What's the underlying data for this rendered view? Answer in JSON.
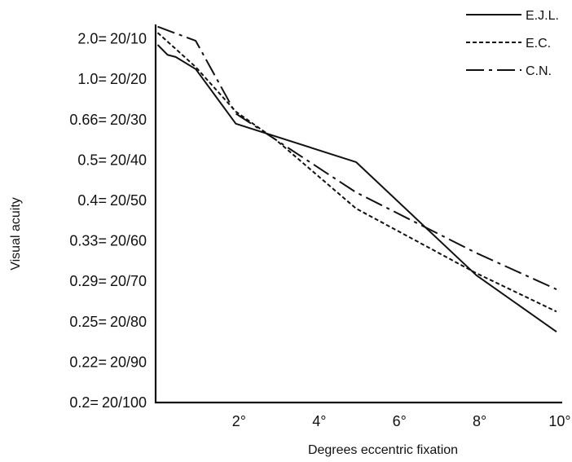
{
  "chart_data": {
    "type": "line",
    "title": "",
    "xlabel": "Degrees eccentric fixation",
    "ylabel": "Visual acuity",
    "xlim": [
      0,
      10
    ],
    "ylim_levels": [
      0,
      11
    ],
    "x_ticks": [
      {
        "value": 2,
        "label": "2°"
      },
      {
        "value": 4,
        "label": "4°"
      },
      {
        "value": 6,
        "label": "6°"
      },
      {
        "value": 8,
        "label": "8°"
      },
      {
        "value": 10,
        "label": "10°"
      }
    ],
    "y_ticks": [
      {
        "level": 0,
        "decimal": "0.2",
        "snellen": "20/100"
      },
      {
        "level": 1,
        "decimal": "0.22",
        "snellen": "20/90"
      },
      {
        "level": 2,
        "decimal": "0.25",
        "snellen": "20/80"
      },
      {
        "level": 3,
        "decimal": "0.29",
        "snellen": "20/70"
      },
      {
        "level": 4,
        "decimal": "0.33",
        "snellen": "20/60"
      },
      {
        "level": 5,
        "decimal": "0.4",
        "snellen": "20/50"
      },
      {
        "level": 6,
        "decimal": "0.5",
        "snellen": "20/40"
      },
      {
        "level": 7,
        "decimal": "0.66",
        "snellen": "20/30"
      },
      {
        "level": 8,
        "decimal": "1.0",
        "snellen": "20/20"
      },
      {
        "level": 9,
        "decimal": "2.0",
        "snellen": "20/10"
      }
    ],
    "y_equals_sign": "=",
    "legend_position": "top-right",
    "grid": false,
    "series": [
      {
        "name": "E.J.L.",
        "dash": "solid",
        "points": [
          [
            0.05,
            8.85
          ],
          [
            0.3,
            8.6
          ],
          [
            0.5,
            8.55
          ],
          [
            1.0,
            8.25
          ],
          [
            2.0,
            6.9
          ],
          [
            5.0,
            5.95
          ],
          [
            8.0,
            3.15
          ],
          [
            10.0,
            1.75
          ]
        ]
      },
      {
        "name": "E.C.",
        "dash": "dotted",
        "points": [
          [
            0.05,
            9.15
          ],
          [
            0.5,
            8.75
          ],
          [
            1.0,
            8.3
          ],
          [
            2.0,
            7.2
          ],
          [
            3.0,
            6.5
          ],
          [
            5.0,
            4.8
          ],
          [
            8.0,
            3.2
          ],
          [
            10.0,
            2.25
          ]
        ]
      },
      {
        "name": "C.N.",
        "dash": "dashdot",
        "points": [
          [
            0.05,
            9.3
          ],
          [
            1.0,
            8.95
          ],
          [
            2.0,
            7.15
          ],
          [
            3.0,
            6.5
          ],
          [
            5.0,
            5.2
          ],
          [
            8.0,
            3.7
          ],
          [
            10.0,
            2.8
          ]
        ]
      }
    ]
  }
}
